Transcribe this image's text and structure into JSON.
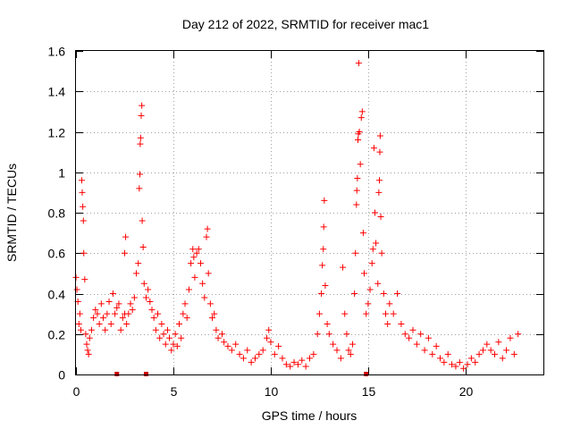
{
  "chart_data": {
    "type": "scatter",
    "title": "Day 212 of 2022, SRMTID for receiver mac1",
    "xlabel": "GPS time / hours",
    "ylabel": "SRMTID / TECUs",
    "xlim": [
      0,
      24
    ],
    "ylim": [
      0,
      1.6
    ],
    "xticks": [
      0,
      5,
      10,
      15,
      20
    ],
    "xtick_labels": [
      "0",
      "5",
      "10",
      "15",
      "20"
    ],
    "yticks": [
      0,
      0.2,
      0.4,
      0.6,
      0.8,
      1.0,
      1.2,
      1.4,
      1.6
    ],
    "ytick_labels": [
      "0",
      "0.2",
      "0.4",
      "0.6",
      "0.8",
      "1",
      "1.2",
      "1.4",
      "1.6"
    ],
    "grid": true,
    "marker": "+",
    "color": "#ff0000",
    "zero_marker_color": "#cc0000",
    "zero_markers_x": [
      2.1,
      3.6,
      14.9
    ],
    "series": [
      {
        "name": "SRMTID",
        "points": [
          [
            0.0,
            0.48
          ],
          [
            0.05,
            0.42
          ],
          [
            0.1,
            0.36
          ],
          [
            0.15,
            0.25
          ],
          [
            0.2,
            0.3
          ],
          [
            0.25,
            0.22
          ],
          [
            0.3,
            0.96
          ],
          [
            0.32,
            0.9
          ],
          [
            0.35,
            0.83
          ],
          [
            0.38,
            0.76
          ],
          [
            0.4,
            0.6
          ],
          [
            0.45,
            0.47
          ],
          [
            0.5,
            0.2
          ],
          [
            0.55,
            0.15
          ],
          [
            0.6,
            0.12
          ],
          [
            0.65,
            0.1
          ],
          [
            0.7,
            0.18
          ],
          [
            0.8,
            0.22
          ],
          [
            0.9,
            0.28
          ],
          [
            1.0,
            0.32
          ],
          [
            1.1,
            0.3
          ],
          [
            1.2,
            0.25
          ],
          [
            1.3,
            0.35
          ],
          [
            1.4,
            0.28
          ],
          [
            1.5,
            0.22
          ],
          [
            1.6,
            0.3
          ],
          [
            1.7,
            0.36
          ],
          [
            1.8,
            0.25
          ],
          [
            1.9,
            0.4
          ],
          [
            2.0,
            0.3
          ],
          [
            2.1,
            0.33
          ],
          [
            2.2,
            0.35
          ],
          [
            2.3,
            0.22
          ],
          [
            2.4,
            0.28
          ],
          [
            2.5,
            0.3
          ],
          [
            2.5,
            0.6
          ],
          [
            2.55,
            0.68
          ],
          [
            2.6,
            0.25
          ],
          [
            2.7,
            0.3
          ],
          [
            2.8,
            0.35
          ],
          [
            2.9,
            0.32
          ],
          [
            3.0,
            0.38
          ],
          [
            3.1,
            0.5
          ],
          [
            3.2,
            0.55
          ],
          [
            3.25,
            0.92
          ],
          [
            3.28,
            0.99
          ],
          [
            3.3,
            1.14
          ],
          [
            3.32,
            1.17
          ],
          [
            3.35,
            1.28
          ],
          [
            3.38,
            1.33
          ],
          [
            3.4,
            0.76
          ],
          [
            3.45,
            0.63
          ],
          [
            3.5,
            0.45
          ],
          [
            3.6,
            0.38
          ],
          [
            3.7,
            0.42
          ],
          [
            3.8,
            0.36
          ],
          [
            3.9,
            0.32
          ],
          [
            4.0,
            0.28
          ],
          [
            4.1,
            0.22
          ],
          [
            4.2,
            0.3
          ],
          [
            4.3,
            0.18
          ],
          [
            4.4,
            0.25
          ],
          [
            4.5,
            0.2
          ],
          [
            4.6,
            0.15
          ],
          [
            4.7,
            0.22
          ],
          [
            4.8,
            0.18
          ],
          [
            4.9,
            0.12
          ],
          [
            5.0,
            0.15
          ],
          [
            5.1,
            0.2
          ],
          [
            5.2,
            0.14
          ],
          [
            5.3,
            0.25
          ],
          [
            5.4,
            0.18
          ],
          [
            5.5,
            0.3
          ],
          [
            5.6,
            0.35
          ],
          [
            5.7,
            0.28
          ],
          [
            5.8,
            0.42
          ],
          [
            5.9,
            0.55
          ],
          [
            6.0,
            0.62
          ],
          [
            6.05,
            0.58
          ],
          [
            6.1,
            0.48
          ],
          [
            6.2,
            0.6
          ],
          [
            6.3,
            0.62
          ],
          [
            6.4,
            0.55
          ],
          [
            6.5,
            0.45
          ],
          [
            6.6,
            0.38
          ],
          [
            6.7,
            0.68
          ],
          [
            6.75,
            0.72
          ],
          [
            6.8,
            0.5
          ],
          [
            6.9,
            0.35
          ],
          [
            7.0,
            0.28
          ],
          [
            7.1,
            0.3
          ],
          [
            7.2,
            0.22
          ],
          [
            7.3,
            0.18
          ],
          [
            7.5,
            0.2
          ],
          [
            7.6,
            0.16
          ],
          [
            7.8,
            0.14
          ],
          [
            8.0,
            0.12
          ],
          [
            8.2,
            0.15
          ],
          [
            8.4,
            0.1
          ],
          [
            8.6,
            0.08
          ],
          [
            8.8,
            0.12
          ],
          [
            9.0,
            0.06
          ],
          [
            9.2,
            0.08
          ],
          [
            9.4,
            0.1
          ],
          [
            9.6,
            0.12
          ],
          [
            9.8,
            0.18
          ],
          [
            9.9,
            0.22
          ],
          [
            10.0,
            0.16
          ],
          [
            10.2,
            0.1
          ],
          [
            10.4,
            0.14
          ],
          [
            10.6,
            0.08
          ],
          [
            10.8,
            0.05
          ],
          [
            11.0,
            0.04
          ],
          [
            11.2,
            0.06
          ],
          [
            11.4,
            0.05
          ],
          [
            11.6,
            0.07
          ],
          [
            11.8,
            0.04
          ],
          [
            12.0,
            0.08
          ],
          [
            12.2,
            0.1
          ],
          [
            12.4,
            0.2
          ],
          [
            12.5,
            0.3
          ],
          [
            12.6,
            0.4
          ],
          [
            12.65,
            0.54
          ],
          [
            12.7,
            0.62
          ],
          [
            12.72,
            0.73
          ],
          [
            12.75,
            0.86
          ],
          [
            12.8,
            0.44
          ],
          [
            12.9,
            0.25
          ],
          [
            13.0,
            0.2
          ],
          [
            13.2,
            0.15
          ],
          [
            13.4,
            0.12
          ],
          [
            13.6,
            0.08
          ],
          [
            13.7,
            0.53
          ],
          [
            13.8,
            0.3
          ],
          [
            13.9,
            0.2
          ],
          [
            14.0,
            0.12
          ],
          [
            14.1,
            0.1
          ],
          [
            14.2,
            0.15
          ],
          [
            14.3,
            0.4
          ],
          [
            14.35,
            0.6
          ],
          [
            14.4,
            0.84
          ],
          [
            14.42,
            0.91
          ],
          [
            14.45,
            0.97
          ],
          [
            14.48,
            1.16
          ],
          [
            14.5,
            1.19
          ],
          [
            14.52,
            1.54
          ],
          [
            14.55,
            1.2
          ],
          [
            14.6,
            1.04
          ],
          [
            14.65,
            1.27
          ],
          [
            14.7,
            1.3
          ],
          [
            14.75,
            0.7
          ],
          [
            14.8,
            0.5
          ],
          [
            14.9,
            0.3
          ],
          [
            15.0,
            0.35
          ],
          [
            15.1,
            0.42
          ],
          [
            15.2,
            0.55
          ],
          [
            15.25,
            0.62
          ],
          [
            15.3,
            1.12
          ],
          [
            15.35,
            0.8
          ],
          [
            15.4,
            0.65
          ],
          [
            15.5,
            0.45
          ],
          [
            15.55,
            0.9
          ],
          [
            15.58,
            0.96
          ],
          [
            15.6,
            1.1
          ],
          [
            15.62,
            1.18
          ],
          [
            15.65,
            0.78
          ],
          [
            15.7,
            0.6
          ],
          [
            15.8,
            0.4
          ],
          [
            15.9,
            0.3
          ],
          [
            16.0,
            0.25
          ],
          [
            16.1,
            0.35
          ],
          [
            16.3,
            0.3
          ],
          [
            16.5,
            0.4
          ],
          [
            16.7,
            0.25
          ],
          [
            16.9,
            0.2
          ],
          [
            17.1,
            0.18
          ],
          [
            17.3,
            0.22
          ],
          [
            17.5,
            0.15
          ],
          [
            17.7,
            0.2
          ],
          [
            17.9,
            0.12
          ],
          [
            18.1,
            0.18
          ],
          [
            18.3,
            0.1
          ],
          [
            18.5,
            0.14
          ],
          [
            18.7,
            0.08
          ],
          [
            18.9,
            0.06
          ],
          [
            19.1,
            0.1
          ],
          [
            19.3,
            0.05
          ],
          [
            19.5,
            0.04
          ],
          [
            19.7,
            0.06
          ],
          [
            19.9,
            0.03
          ],
          [
            20.1,
            0.05
          ],
          [
            20.3,
            0.08
          ],
          [
            20.5,
            0.06
          ],
          [
            20.7,
            0.1
          ],
          [
            20.9,
            0.12
          ],
          [
            21.1,
            0.15
          ],
          [
            21.3,
            0.12
          ],
          [
            21.5,
            0.1
          ],
          [
            21.7,
            0.16
          ],
          [
            21.9,
            0.08
          ],
          [
            22.1,
            0.12
          ],
          [
            22.3,
            0.18
          ],
          [
            22.5,
            0.1
          ],
          [
            22.7,
            0.2
          ]
        ]
      }
    ]
  }
}
